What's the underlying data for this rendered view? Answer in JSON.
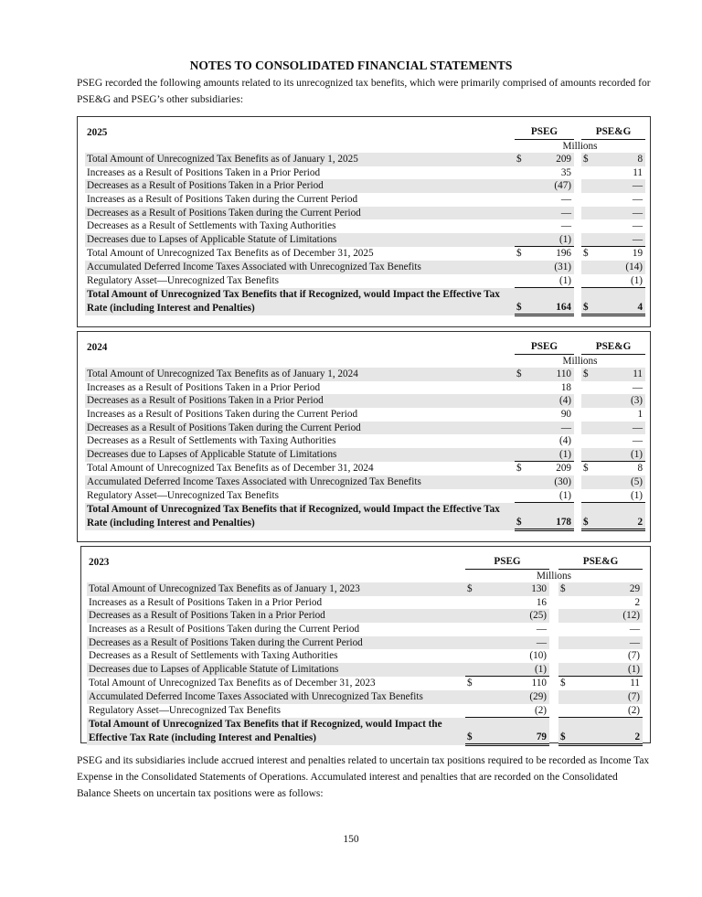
{
  "header": {
    "title": "NOTES TO CONSOLIDATED FINANCIAL STATEMENTS"
  },
  "intro": "PSEG recorded the following amounts related to its unrecognized tax benefits, which were primarily comprised of amounts recorded for PSE&G and PSEG’s other subsidiaries:",
  "tables": [
    {
      "year": "2025",
      "columns": [
        "PSEG",
        "PSE&G"
      ],
      "unit": "Millions",
      "rows": [
        {
          "label": "Total Amount of Unrecognized Tax Benefits as of January 1, 2025",
          "pseg_sign": "$",
          "pseg": "209",
          "pseg_e_sign": "$",
          "pseg_e": "8"
        },
        {
          "label": "Increases as a Result of Positions Taken in a Prior Period",
          "pseg": "35",
          "pseg_e": "11"
        },
        {
          "label": "Decreases as a Result of Positions Taken in a Prior Period",
          "pseg": "(47)",
          "pseg_e": "—"
        },
        {
          "label": "Increases as a Result of Positions Taken during the Current Period",
          "pseg": "—",
          "pseg_e": "—"
        },
        {
          "label": "Decreases as a Result of Positions Taken during the Current Period",
          "pseg": "—",
          "pseg_e": "—"
        },
        {
          "label": "Decreases as a Result of Settlements with Taxing Authorities",
          "pseg": "—",
          "pseg_e": "—"
        },
        {
          "label": "Decreases due to Lapses of Applicable Statute of Limitations",
          "pseg": "(1)",
          "pseg_e": "—"
        },
        {
          "label": "Total Amount of Unrecognized Tax Benefits as of December 31, 2025",
          "pseg_sign": "$",
          "pseg": "196",
          "pseg_e_sign": "$",
          "pseg_e": "19"
        },
        {
          "label": "Accumulated Deferred Income Taxes Associated with Unrecognized Tax Benefits",
          "pseg": "(31)",
          "pseg_e": "(14)"
        },
        {
          "label": "Regulatory Asset—Unrecognized Tax Benefits",
          "pseg": "(1)",
          "pseg_e": "(1)"
        },
        {
          "label": "Total Amount of Unrecognized Tax Benefits that if Recognized, would Impact the Effective Tax Rate (including Interest and Penalties)",
          "pseg_sign": "$",
          "pseg": "164",
          "pseg_e_sign": "$",
          "pseg_e": "4"
        }
      ]
    },
    {
      "year": "2024",
      "columns": [
        "PSEG",
        "PSE&G"
      ],
      "unit": "Millions",
      "rows": [
        {
          "label": "Total Amount of Unrecognized Tax Benefits as of January 1, 2024",
          "pseg_sign": "$",
          "pseg": "110",
          "pseg_e_sign": "$",
          "pseg_e": "11"
        },
        {
          "label": "Increases as a Result of Positions Taken in a Prior Period",
          "pseg": "18",
          "pseg_e": "—"
        },
        {
          "label": "Decreases as a Result of Positions Taken in a Prior Period",
          "pseg": "(4)",
          "pseg_e": "(3)"
        },
        {
          "label": "Increases as a Result of Positions Taken during the Current Period",
          "pseg": "90",
          "pseg_e": "1"
        },
        {
          "label": "Decreases as a Result of Positions Taken during the Current Period",
          "pseg": "—",
          "pseg_e": "—"
        },
        {
          "label": "Decreases as a Result of Settlements with Taxing Authorities",
          "pseg": "(4)",
          "pseg_e": "—"
        },
        {
          "label": "Decreases due to Lapses of Applicable Statute of Limitations",
          "pseg": "(1)",
          "pseg_e": "(1)"
        },
        {
          "label": "Total Amount of Unrecognized Tax Benefits as of December 31, 2024",
          "pseg_sign": "$",
          "pseg": "209",
          "pseg_e_sign": "$",
          "pseg_e": "8"
        },
        {
          "label": "Accumulated Deferred Income Taxes Associated with Unrecognized Tax Benefits",
          "pseg": "(30)",
          "pseg_e": "(5)"
        },
        {
          "label": "Regulatory Asset—Unrecognized Tax Benefits",
          "pseg": "(1)",
          "pseg_e": "(1)"
        },
        {
          "label": "Total Amount of Unrecognized Tax Benefits that if Recognized, would Impact the Effective Tax Rate (including Interest and Penalties)",
          "pseg_sign": "$",
          "pseg": "178",
          "pseg_e_sign": "$",
          "pseg_e": "2"
        }
      ]
    },
    {
      "year": "2023",
      "columns": [
        "PSEG",
        "PSE&G"
      ],
      "unit": "Millions",
      "rows": [
        {
          "label": "Total Amount of Unrecognized Tax Benefits as of January 1, 2023",
          "pseg_sign": "$",
          "pseg": "130",
          "pseg_e_sign": "$",
          "pseg_e": "29"
        },
        {
          "label": "Increases as a Result of Positions Taken in a Prior Period",
          "pseg": "16",
          "pseg_e": "2"
        },
        {
          "label": "Decreases as a Result of Positions Taken in a Prior Period",
          "pseg": "(25)",
          "pseg_e": "(12)"
        },
        {
          "label": "Increases as a Result of Positions Taken during the Current Period",
          "pseg": "—",
          "pseg_e": "—"
        },
        {
          "label": "Decreases as a Result of Positions Taken during the Current Period",
          "pseg": "—",
          "pseg_e": "—"
        },
        {
          "label": "Decreases as a Result of Settlements with Taxing Authorities",
          "pseg": "(10)",
          "pseg_e": "(7)"
        },
        {
          "label": "Decreases due to Lapses of Applicable Statute of Limitations",
          "pseg": "(1)",
          "pseg_e": "(1)"
        },
        {
          "label": "Total Amount of Unrecognized Tax Benefits as of December 31, 2023",
          "pseg_sign": "$",
          "pseg": "110",
          "pseg_e_sign": "$",
          "pseg_e": "11"
        },
        {
          "label": "Accumulated Deferred Income Taxes Associated with Unrecognized Tax Benefits",
          "pseg": "(29)",
          "pseg_e": "(7)"
        },
        {
          "label": "Regulatory Asset—Unrecognized Tax Benefits",
          "pseg": "(2)",
          "pseg_e": "(2)"
        },
        {
          "label": "Total Amount of Unrecognized Tax Benefits that if Recognized, would Impact the Effective Tax Rate (including Interest and Penalties)",
          "pseg_sign": "$",
          "pseg": "79",
          "pseg_e_sign": "$",
          "pseg_e": "2"
        }
      ]
    }
  ],
  "closing": "PSEG and its subsidiaries include accrued interest and penalties related to uncertain tax positions required to be recorded as Income Tax Expense in the Consolidated Statements of Operations. Accumulated interest and penalties that are recorded on the Consolidated Balance Sheets on uncertain tax positions were as follows:",
  "footer": {
    "page_number": "150"
  }
}
